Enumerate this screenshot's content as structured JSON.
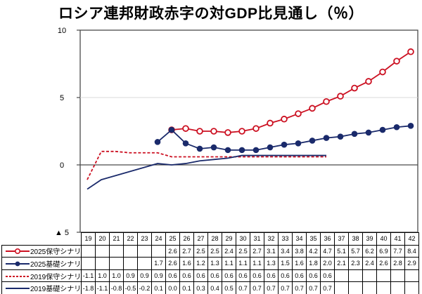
{
  "title": "ロシア連邦財政赤字の対GDP比見通し（％）",
  "colors": {
    "red": "#cc1122",
    "navy": "#1a2a6b",
    "gridline": "#d9d9d9",
    "zero_line": "#4a4a4a",
    "plot_border": "#4a4a4a",
    "table_border": "#000000",
    "background": "#ffffff"
  },
  "chart_data": {
    "type": "line",
    "title": "ロシア連邦財政赤字の対GDP比見通し（％）",
    "xlabel": "",
    "ylabel": "",
    "x": [
      19,
      20,
      21,
      22,
      23,
      24,
      25,
      26,
      27,
      28,
      29,
      30,
      31,
      32,
      33,
      34,
      35,
      36,
      37,
      38,
      39,
      40,
      41,
      42
    ],
    "ylim": [
      -5,
      10
    ],
    "yticks": [
      {
        "value": 10,
        "label": "10"
      },
      {
        "value": 5,
        "label": "5"
      },
      {
        "value": 0,
        "label": "0"
      },
      {
        "value": -5,
        "label": "▲ 5"
      }
    ],
    "grid": "horizontal line at 5 (light) and 0 (dark)",
    "legend_position": "left column of data table",
    "series": [
      {
        "name": "2025保守シナリオ",
        "color": "#cc1122",
        "line_style": "solid",
        "marker": "open-circle",
        "values": [
          null,
          null,
          null,
          null,
          null,
          null,
          2.6,
          2.7,
          2.5,
          2.5,
          2.4,
          2.5,
          2.7,
          3.1,
          3.4,
          3.8,
          4.2,
          4.7,
          5.1,
          5.7,
          6.2,
          6.9,
          7.7,
          8.4
        ]
      },
      {
        "name": "2025基礎シナリオ",
        "color": "#1a2a6b",
        "line_style": "solid",
        "marker": "filled-circle",
        "values": [
          null,
          null,
          null,
          null,
          null,
          1.7,
          2.6,
          1.6,
          1.2,
          1.3,
          1.1,
          1.1,
          1.1,
          1.3,
          1.5,
          1.6,
          1.8,
          2.0,
          2.1,
          2.3,
          2.4,
          2.6,
          2.8,
          2.9
        ]
      },
      {
        "name": "2019保守シナリオ",
        "color": "#cc1122",
        "line_style": "dashed",
        "marker": "none",
        "values": [
          -1.1,
          1.0,
          1.0,
          0.9,
          0.9,
          0.9,
          0.6,
          0.6,
          0.6,
          0.6,
          0.6,
          0.6,
          0.6,
          0.6,
          0.6,
          0.6,
          0.6,
          0.6,
          null,
          null,
          null,
          null,
          null,
          null
        ]
      },
      {
        "name": "2019基礎シナリオ",
        "color": "#1a2a6b",
        "line_style": "solid",
        "marker": "none",
        "values": [
          -1.8,
          -1.1,
          -0.8,
          -0.5,
          -0.2,
          0.1,
          0.0,
          0.1,
          0.3,
          0.4,
          0.5,
          0.7,
          0.7,
          0.7,
          0.7,
          0.7,
          0.7,
          0.7,
          null,
          null,
          null,
          null,
          null,
          null
        ]
      }
    ]
  }
}
